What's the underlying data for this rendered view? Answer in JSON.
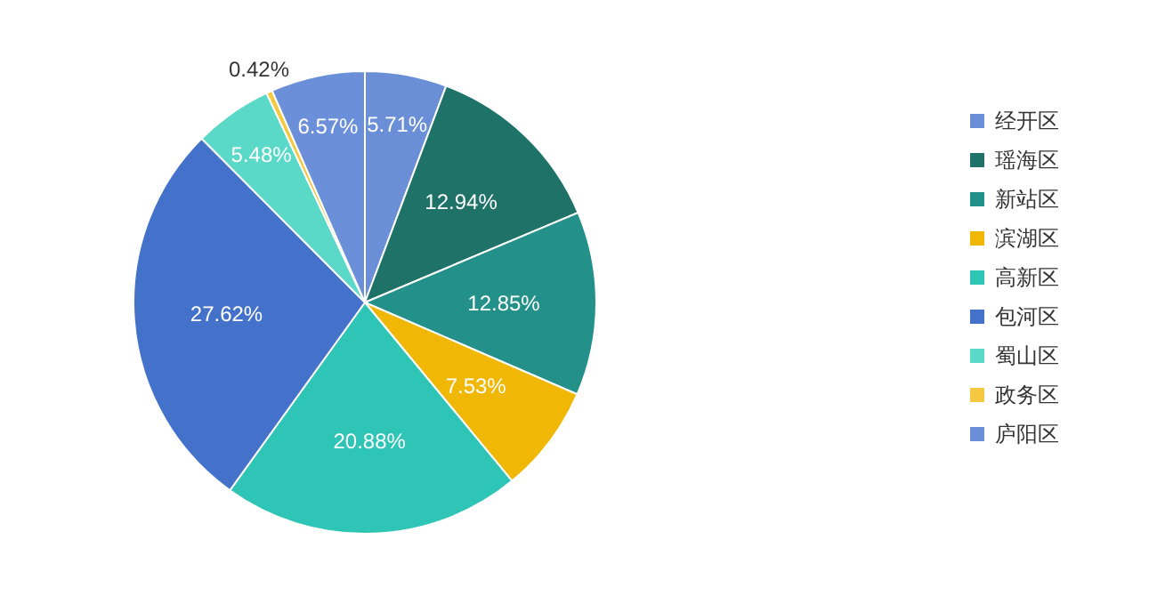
{
  "chart_data": {
    "type": "pie",
    "categories": [
      "经开区",
      "瑶海区",
      "新站区",
      "滨湖区",
      "高新区",
      "包河区",
      "蜀山区",
      "政务区",
      "庐阳区"
    ],
    "values": [
      5.71,
      12.94,
      12.85,
      7.53,
      20.88,
      27.62,
      5.48,
      0.42,
      6.57
    ],
    "colors": [
      "#6b8fd6",
      "#1e7268",
      "#23908a",
      "#f0b705",
      "#2ec4b6",
      "#4472ca",
      "#5ad8c8",
      "#f5c842",
      "#6b8fd8"
    ],
    "value_labels": [
      "5.71%",
      "12.94%",
      "12.85%",
      "7.53%",
      "20.88%",
      "27.62%",
      "5.48%",
      "0.42%",
      "6.57%"
    ],
    "legend": "right"
  }
}
